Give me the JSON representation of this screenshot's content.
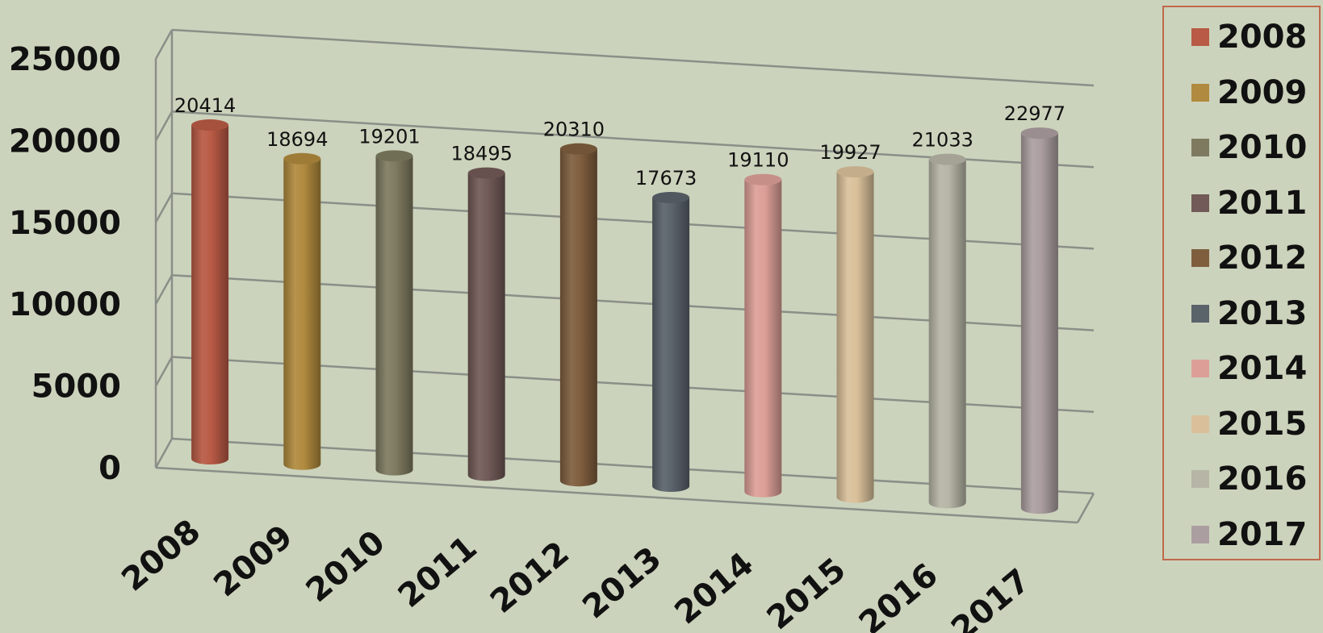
{
  "chart_data": {
    "type": "bar",
    "style": "3d-cylinder",
    "categories": [
      "2008",
      "2009",
      "2010",
      "2011",
      "2012",
      "2013",
      "2014",
      "2015",
      "2016",
      "2017"
    ],
    "values": [
      20414,
      18694,
      19201,
      18495,
      20310,
      17673,
      19110,
      19927,
      21033,
      22977
    ],
    "colors": [
      "#b85a45",
      "#b08a3e",
      "#7e7a60",
      "#715a57",
      "#7f5e3e",
      "#5a626a",
      "#dc9f97",
      "#d9c09a",
      "#b6b5a6",
      "#ab9ea0"
    ],
    "yticks": [
      "0",
      "5000",
      "10000",
      "15000",
      "20000",
      "25000"
    ],
    "ylim": [
      0,
      25000
    ],
    "title": "",
    "xlabel": "",
    "ylabel": "",
    "grid": true,
    "legend_position": "right",
    "legend": [
      "2008",
      "2009",
      "2010",
      "2011",
      "2012",
      "2013",
      "2014",
      "2015",
      "2016",
      "2017"
    ]
  }
}
